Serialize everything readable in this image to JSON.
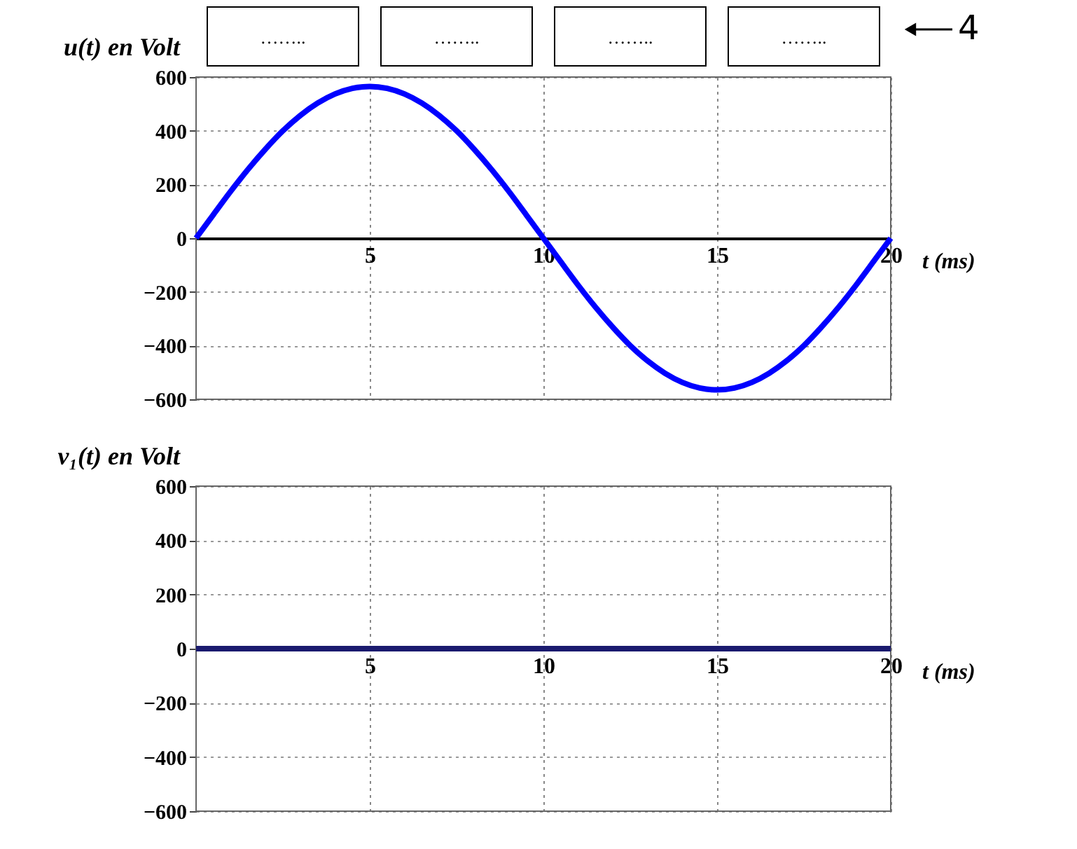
{
  "chart_data": [
    {
      "type": "line",
      "ylabel": "u(t) en Volt",
      "xlabel": "t (ms)",
      "x": [
        0,
        0.5,
        1,
        1.5,
        2,
        2.5,
        3,
        3.5,
        4,
        4.5,
        5,
        5.5,
        6,
        6.5,
        7,
        7.5,
        8,
        8.5,
        9,
        9.5,
        10,
        10.5,
        11,
        11.5,
        12,
        12.5,
        13,
        13.5,
        14,
        14.5,
        15,
        15.5,
        16,
        16.5,
        17,
        17.5,
        18,
        18.5,
        19,
        19.5,
        20
      ],
      "series": [
        {
          "color": "#0000ff",
          "values": [
            0,
            88,
            175,
            257,
            332,
            400,
            457,
            503,
            537,
            558,
            565,
            558,
            537,
            503,
            457,
            400,
            332,
            257,
            175,
            88,
            0,
            -88,
            -175,
            -257,
            -332,
            -400,
            -457,
            -503,
            -537,
            -558,
            -565,
            -558,
            -537,
            -503,
            -457,
            -400,
            -332,
            -257,
            -175,
            -88,
            0
          ]
        }
      ],
      "xlim": [
        0,
        20
      ],
      "xticks": [
        5,
        10,
        15,
        20
      ],
      "ylim": [
        -600,
        600
      ],
      "yticks": [
        -600,
        -400,
        -200,
        0,
        200,
        400,
        600
      ],
      "grid": true,
      "marker": "none",
      "line_style": "solid",
      "annotations": [
        "……..",
        "……..",
        "……..",
        "……..",
        "4"
      ]
    },
    {
      "type": "line",
      "ylabel": "v₁(t) en Volt",
      "xlabel": "t (ms)",
      "x": [
        0,
        20
      ],
      "series": [
        {
          "color": "#1a1a6e",
          "values": [
            0,
            0
          ]
        }
      ],
      "xlim": [
        0,
        20
      ],
      "xticks": [
        5,
        10,
        15,
        20
      ],
      "ylim": [
        -600,
        600
      ],
      "yticks": [
        -600,
        -400,
        -200,
        0,
        200,
        400,
        600
      ],
      "grid": true,
      "marker": "none",
      "line_style": "solid"
    }
  ]
}
